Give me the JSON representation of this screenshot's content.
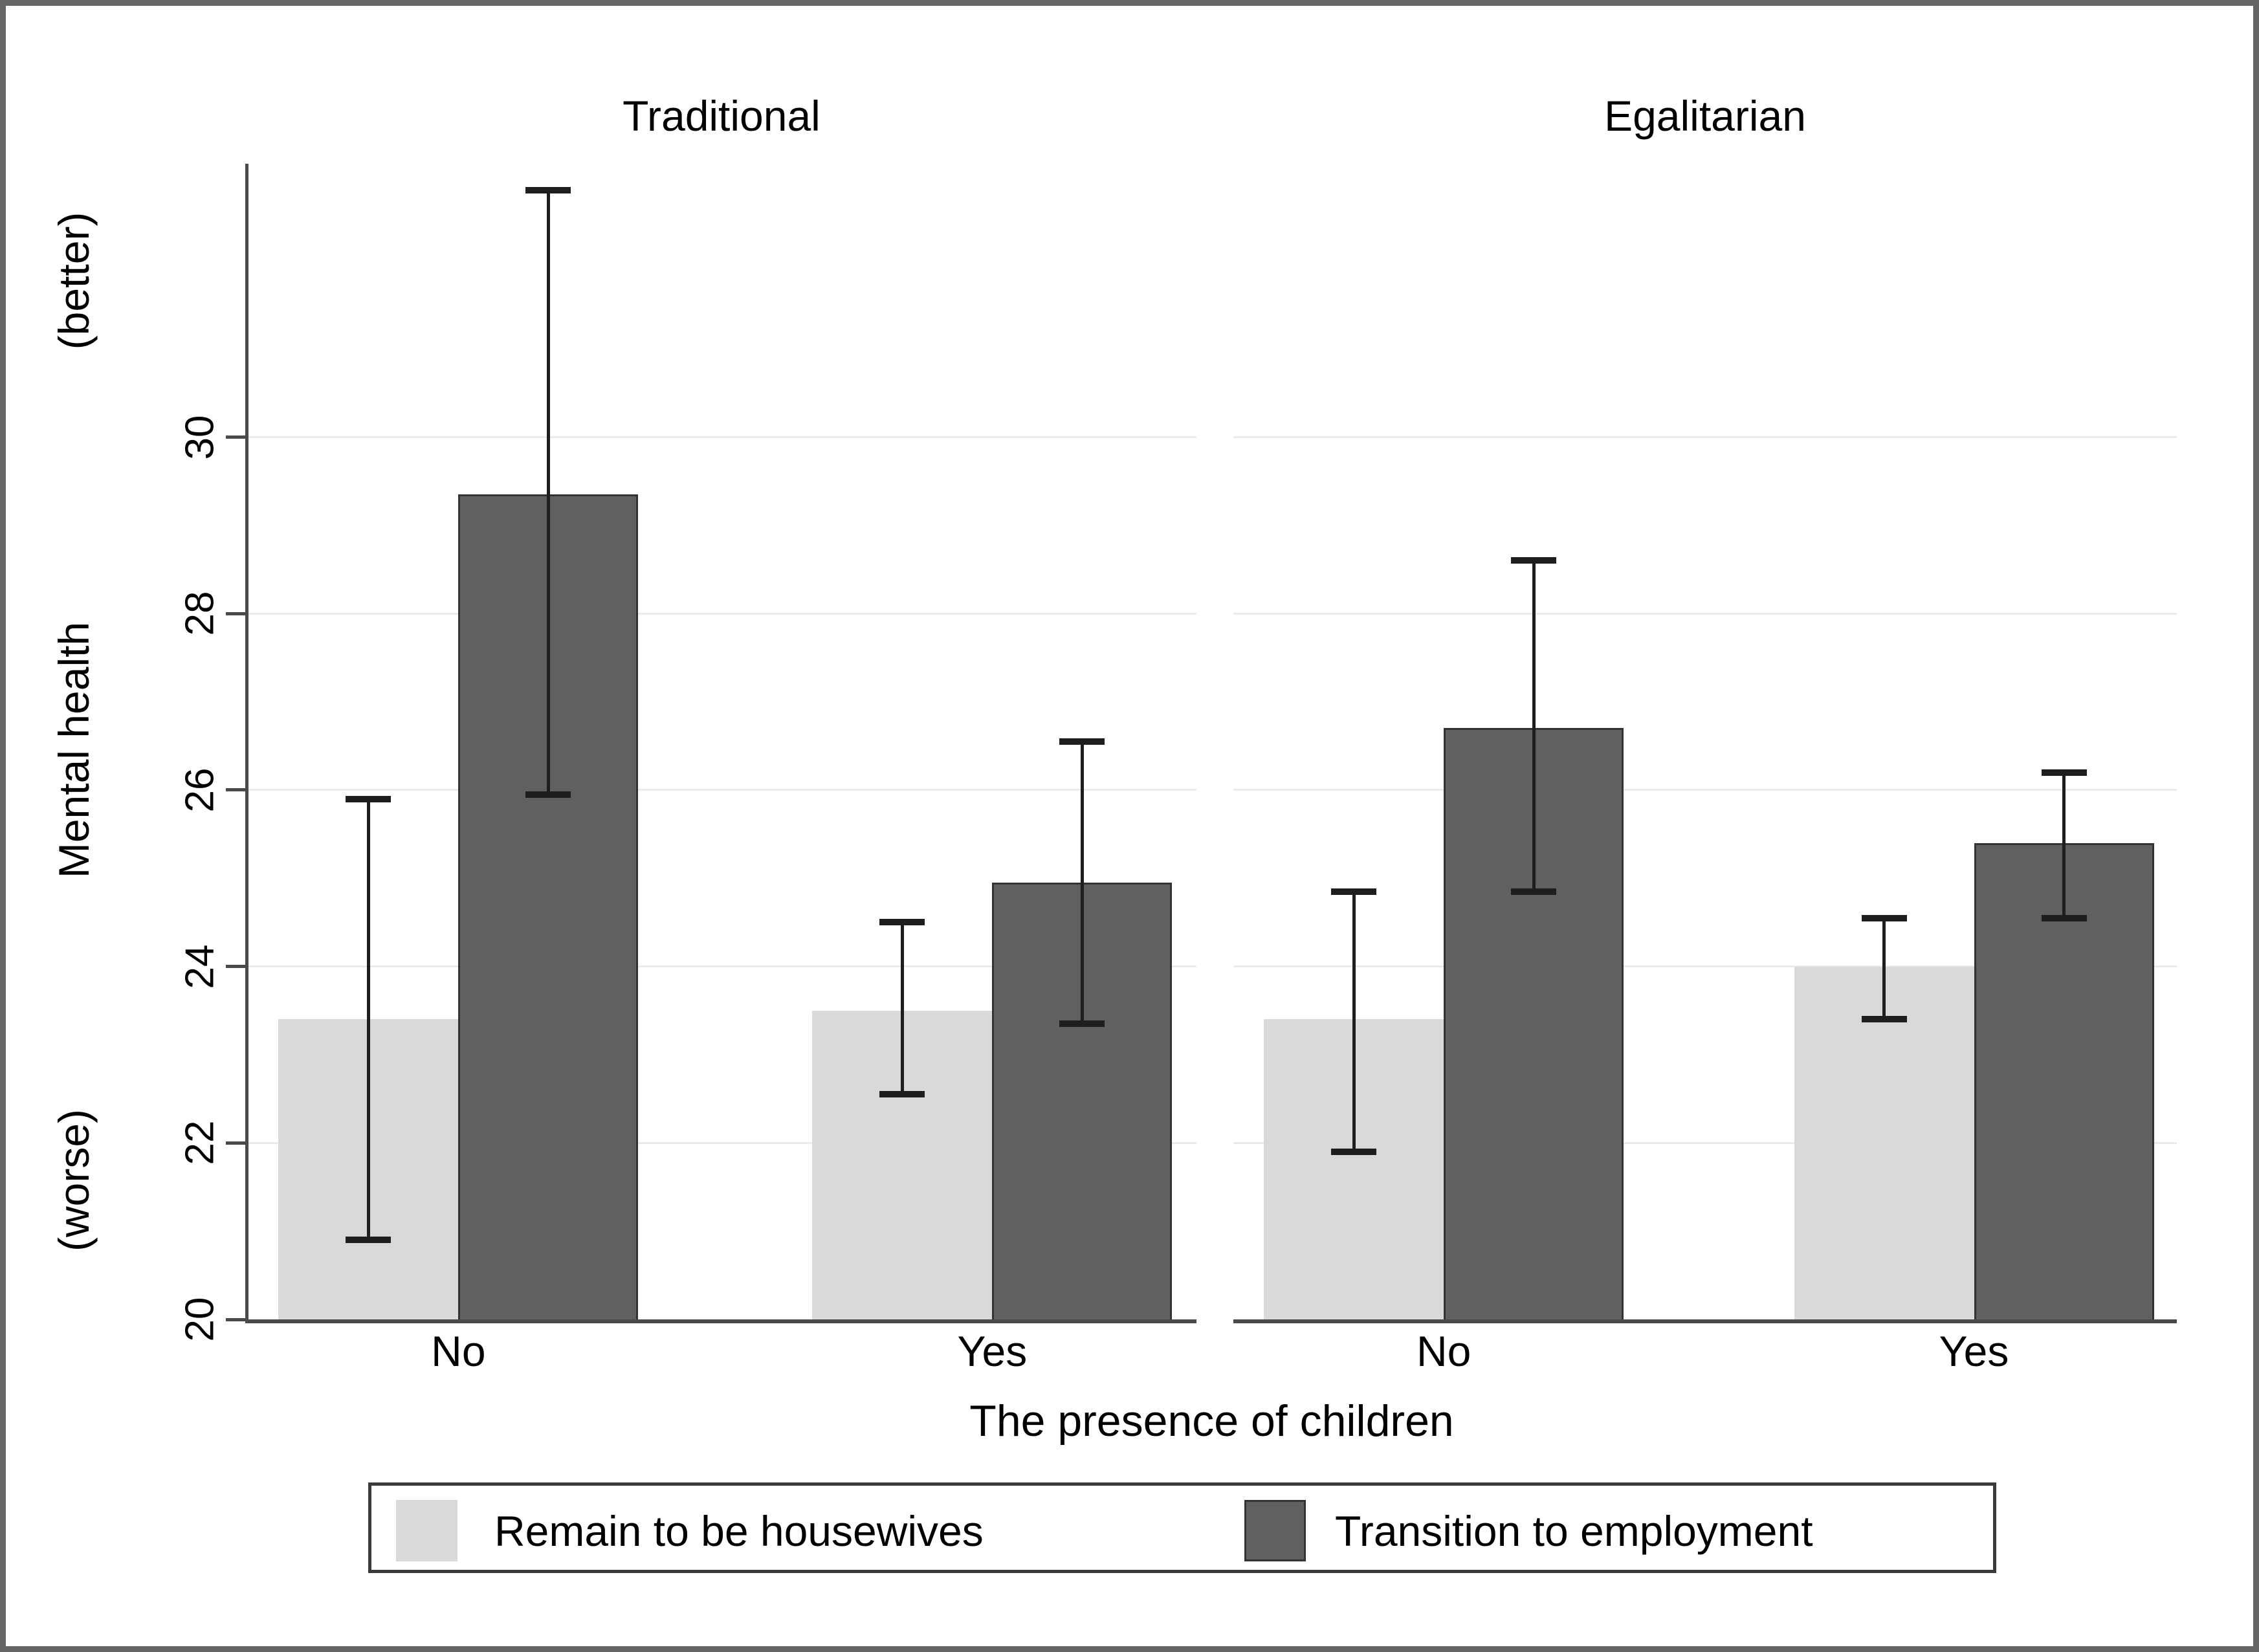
{
  "figure": {
    "border_color": "#646464",
    "background": "#ffffff"
  },
  "chart_data": {
    "type": "bar",
    "panels": [
      "Traditional",
      "Egalitarian"
    ],
    "categories": [
      "No",
      "Yes"
    ],
    "xlabel": "The presence of children",
    "ylabel": "Mental health",
    "ylabel_better": "(better)",
    "ylabel_worse": "(worse)",
    "ylim": [
      20,
      33.1
    ],
    "yticks": [
      20,
      22,
      24,
      26,
      28,
      30
    ],
    "grid": true,
    "legend_position": "bottom",
    "error_bars": true,
    "colors": {
      "gridline": "#ebebeb",
      "axis": "#4a4a4a",
      "error_bar": "#1e1e1e"
    },
    "series": [
      {
        "name": "Remain to be housewives",
        "color": "#d9d9d9",
        "data": [
          {
            "panel": "Traditional",
            "category": "No",
            "value": 23.4,
            "ci_low": 20.9,
            "ci_high": 25.9
          },
          {
            "panel": "Traditional",
            "category": "Yes",
            "value": 23.5,
            "ci_low": 22.55,
            "ci_high": 24.5
          },
          {
            "panel": "Egalitarian",
            "category": "No",
            "value": 23.4,
            "ci_low": 21.9,
            "ci_high": 24.85
          },
          {
            "panel": "Egalitarian",
            "category": "Yes",
            "value": 24.0,
            "ci_low": 23.4,
            "ci_high": 24.55
          }
        ]
      },
      {
        "name": "Transition to employment",
        "color": "#606060",
        "data": [
          {
            "panel": "Traditional",
            "category": "No",
            "value": 29.35,
            "ci_low": 25.95,
            "ci_high": 32.8
          },
          {
            "panel": "Traditional",
            "category": "Yes",
            "value": 24.95,
            "ci_low": 23.35,
            "ci_high": 26.55
          },
          {
            "panel": "Egalitarian",
            "category": "No",
            "value": 26.7,
            "ci_low": 24.85,
            "ci_high": 28.6
          },
          {
            "panel": "Egalitarian",
            "category": "Yes",
            "value": 25.4,
            "ci_low": 24.55,
            "ci_high": 26.2
          }
        ]
      }
    ]
  }
}
